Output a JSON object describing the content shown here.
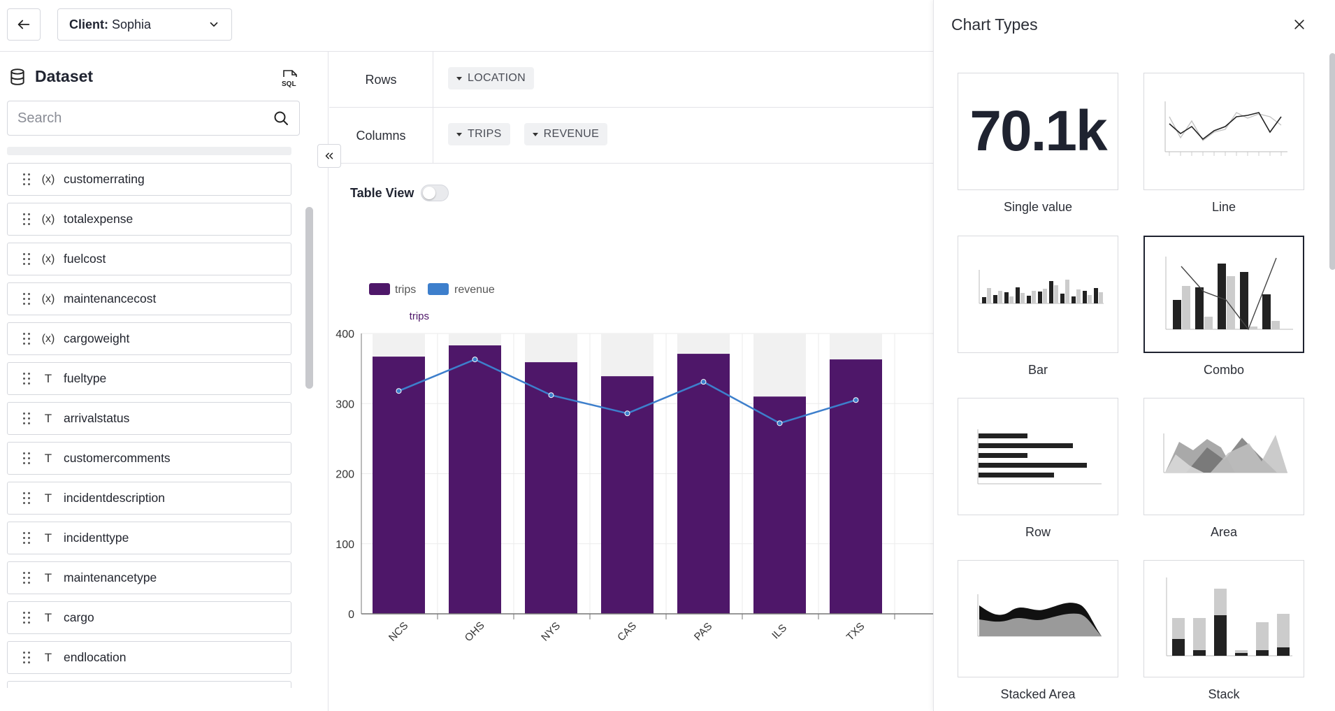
{
  "header": {
    "client_label": "Client:",
    "client_value": "Sophia"
  },
  "sidebar": {
    "title": "Dataset",
    "search_placeholder": "Search",
    "fields": [
      {
        "name": "customerrating",
        "type": "calculated"
      },
      {
        "name": "totalexpense",
        "type": "calculated"
      },
      {
        "name": "fuelcost",
        "type": "calculated"
      },
      {
        "name": "maintenancecost",
        "type": "calculated"
      },
      {
        "name": "cargoweight",
        "type": "calculated"
      },
      {
        "name": "fueltype",
        "type": "text"
      },
      {
        "name": "arrivalstatus",
        "type": "text"
      },
      {
        "name": "customercomments",
        "type": "text"
      },
      {
        "name": "incidentdescription",
        "type": "text"
      },
      {
        "name": "incidenttype",
        "type": "text"
      },
      {
        "name": "maintenancetype",
        "type": "text"
      },
      {
        "name": "cargo",
        "type": "text"
      },
      {
        "name": "endlocation",
        "type": "text"
      }
    ]
  },
  "shelves": {
    "rows_label": "Rows",
    "rows": [
      "LOCATION"
    ],
    "columns_label": "Columns",
    "columns": [
      "TRIPS",
      "REVENUE"
    ]
  },
  "table_view": {
    "label": "Table View",
    "enabled": false
  },
  "chart_data": {
    "type": "bar",
    "categories": [
      "NCS",
      "OHS",
      "NYS",
      "CAS",
      "PAS",
      "ILS",
      "TXS"
    ],
    "series": [
      {
        "name": "trips",
        "type": "bar",
        "color": "#4e1769",
        "values": [
          367,
          383,
          359,
          339,
          371,
          310,
          363
        ]
      },
      {
        "name": "revenue",
        "type": "line",
        "color": "#3d7fcc",
        "values": [
          318,
          363,
          312,
          286,
          331,
          272,
          305
        ]
      }
    ],
    "ylabel": "trips",
    "ylim": [
      0,
      400
    ],
    "yticks": [
      0,
      100,
      200,
      300,
      400
    ],
    "legend": "top-left",
    "grid": true
  },
  "panel": {
    "title": "Chart Types",
    "chart_types": [
      {
        "label": "Single value",
        "preview_text": "70.1k",
        "selected": false
      },
      {
        "label": "Line",
        "selected": false
      },
      {
        "label": "Bar",
        "selected": false
      },
      {
        "label": "Combo",
        "selected": true
      },
      {
        "label": "Row",
        "selected": false
      },
      {
        "label": "Area",
        "selected": false
      },
      {
        "label": "Stacked Area",
        "selected": false
      },
      {
        "label": "Stack",
        "selected": false
      }
    ]
  },
  "colors": {
    "trips": "#4e1769",
    "revenue": "#3d7fcc",
    "border": "#d5d7dd"
  }
}
